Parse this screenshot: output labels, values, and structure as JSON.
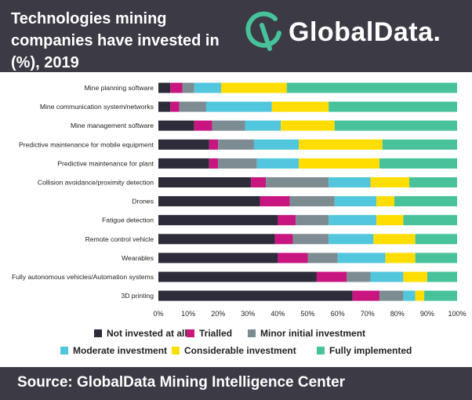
{
  "header": {
    "title": "Technologies mining companies have invested in (%), 2019",
    "logo_text": "GlobalData."
  },
  "footer": {
    "source": "Source:  GlobalData Mining Intelligence Center"
  },
  "chart_data": {
    "type": "bar",
    "orientation": "horizontal",
    "stacked": true,
    "categories": [
      "Mine planning software",
      "Mine communication system/networks",
      "Mine management software",
      "Predictive maintenance for mobile equipment",
      "Predictive maintenance for plant",
      "Collision avoidance/proximity detection",
      "Drones",
      "Fatigue detection",
      "Remote control vehicle",
      "Wearables",
      "Fully autonomous vehicles/Automation systems",
      "3D printing"
    ],
    "series": [
      {
        "name": "Not invested at all",
        "color": "#2e2b3b",
        "values": [
          4,
          4,
          12,
          17,
          17,
          31,
          34,
          40,
          39,
          40,
          53,
          65
        ]
      },
      {
        "name": "Trialled",
        "color": "#c8157f",
        "values": [
          4,
          3,
          6,
          3,
          3,
          5,
          10,
          6,
          6,
          10,
          10,
          9
        ]
      },
      {
        "name": "Minor initial investment",
        "color": "#7d8c92",
        "values": [
          4,
          9,
          11,
          12,
          13,
          21,
          15,
          11,
          12,
          10,
          8,
          8
        ]
      },
      {
        "name": "Moderate investment",
        "color": "#52c6dd",
        "values": [
          9,
          22,
          12,
          15,
          14,
          14,
          14,
          16,
          15,
          16,
          11,
          4
        ]
      },
      {
        "name": "Considerable investment",
        "color": "#ffdd00",
        "values": [
          22,
          19,
          18,
          28,
          27,
          13,
          6,
          9,
          14,
          10,
          8,
          3
        ]
      },
      {
        "name": "Fully implemented",
        "color": "#47c29a",
        "values": [
          57,
          43,
          41,
          25,
          26,
          16,
          21,
          18,
          14,
          14,
          10,
          11
        ]
      }
    ],
    "xticks": [
      "0%",
      "10%",
      "20%",
      "30%",
      "40%",
      "50%",
      "60%",
      "70%",
      "80%",
      "90%",
      "100%"
    ],
    "xlim": [
      0,
      100
    ],
    "grid": false,
    "legend_position": "bottom"
  }
}
